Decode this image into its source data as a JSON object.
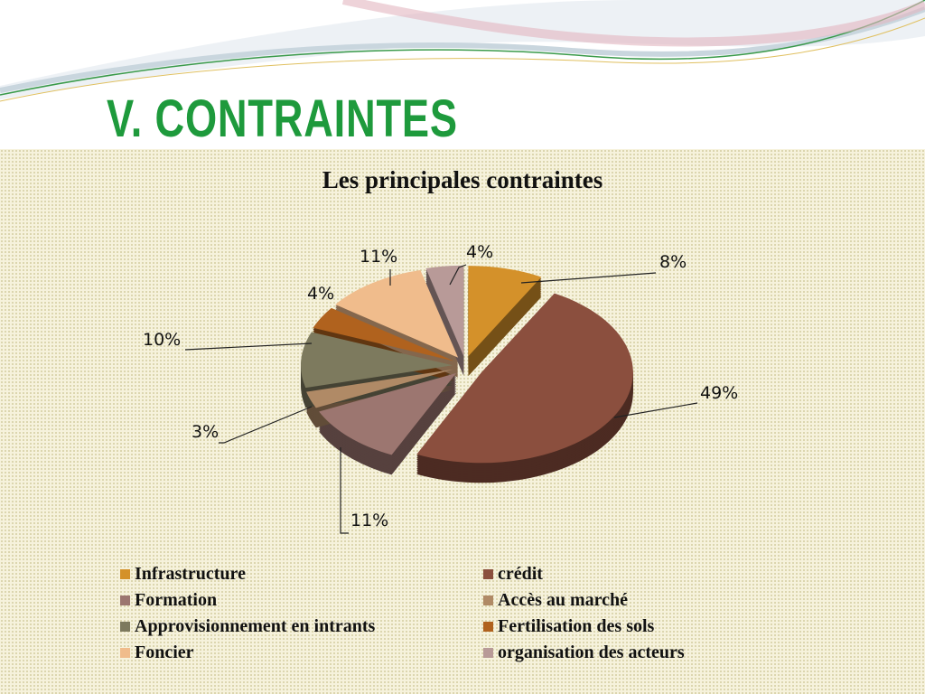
{
  "slide": {
    "title": "V. CONTRAINTES"
  },
  "chart_data": {
    "type": "pie",
    "style": "3d-exploded",
    "title": "Les principales contraintes",
    "categories": [
      "Infrastructure",
      "crédit",
      "Formation",
      "Accès au marché",
      "Approvisionnement en intrants",
      "Fertilisation des sols",
      "Foncier",
      "organisation des acteurs"
    ],
    "values": [
      8,
      49,
      11,
      3,
      10,
      4,
      11,
      4
    ],
    "labels": [
      "8%",
      "49%",
      "11%",
      "3%",
      "10%",
      "4%",
      "11%",
      "4%"
    ],
    "colors": [
      "#d4912a",
      "#8b4f3e",
      "#9c7670",
      "#b08a66",
      "#7d7a5e",
      "#b0621e",
      "#f0bc8c",
      "#b89a98"
    ],
    "legend_position": "bottom"
  }
}
